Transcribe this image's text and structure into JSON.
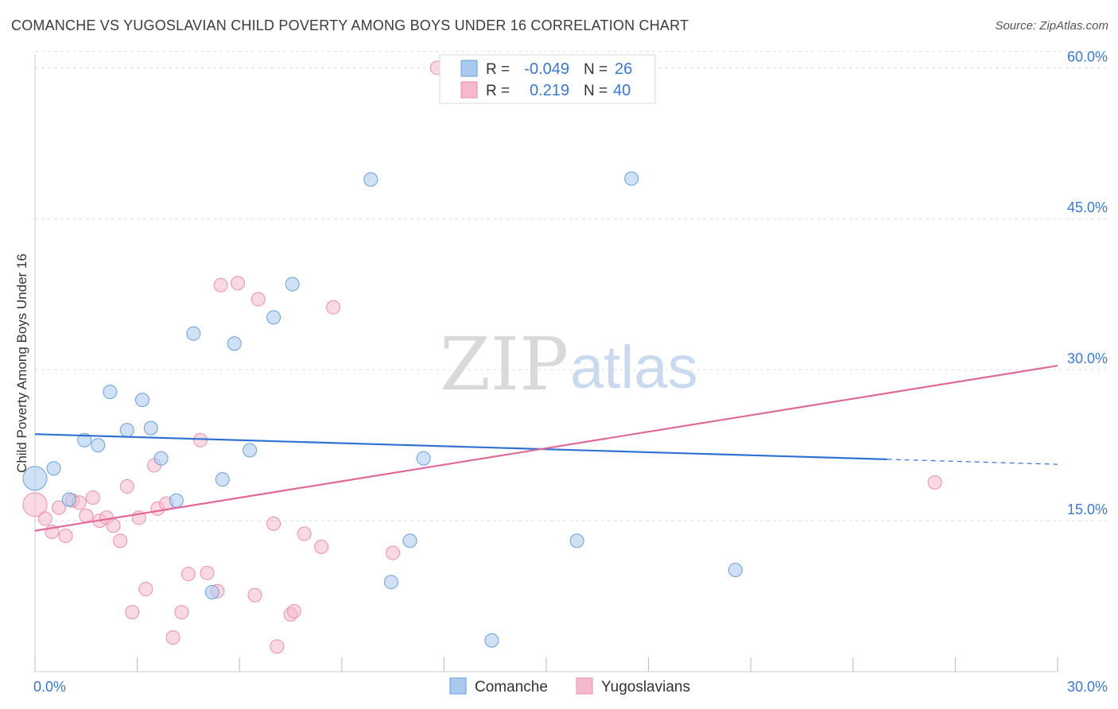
{
  "title": "COMANCHE VS YUGOSLAVIAN CHILD POVERTY AMONG BOYS UNDER 16 CORRELATION CHART",
  "source": "Source: ZipAtlas.com",
  "watermark": {
    "zip": "ZIP",
    "atlas": "atlas"
  },
  "legend": {
    "rows": [
      {
        "r_label": "R =",
        "r_value": "-0.049",
        "n_label": "N =",
        "n_value": "26"
      },
      {
        "r_label": "R =",
        "r_value": "0.219",
        "n_label": "N =",
        "n_value": "40"
      }
    ]
  },
  "colors": {
    "comanche_fill": "#a9c9ef",
    "comanche_stroke": "#6a9fdc",
    "comanche_line": "#2f72d4",
    "yugo_fill": "#f6b9cb",
    "yugo_stroke": "#ea8fac",
    "yugo_line": "#e0699a",
    "grid": "#dddddd",
    "tick_text": "#3a78d4"
  },
  "chart_data": {
    "type": "scatter",
    "title": "COMANCHE VS YUGOSLAVIAN CHILD POVERTY AMONG BOYS UNDER 16 CORRELATION CHART",
    "xlabel": "",
    "ylabel": "Child Poverty Among Boys Under 16",
    "xlim": [
      0,
      30
    ],
    "ylim": [
      0,
      62
    ],
    "x_ticks": [
      {
        "value": 0,
        "label": "0.0%"
      },
      {
        "value": 30,
        "label": "30.0%"
      }
    ],
    "y_ticks": [
      {
        "value": 15,
        "label": "15.0%"
      },
      {
        "value": 30,
        "label": "30.0%"
      },
      {
        "value": 45,
        "label": "45.0%"
      },
      {
        "value": 60,
        "label": "60.0%"
      }
    ],
    "grid": true,
    "legend_position": "bottom-center",
    "series": [
      {
        "name": "Comanche",
        "R": -0.049,
        "N": 26,
        "trend": {
          "x0": 0,
          "y0": 23.6,
          "x1": 25.0,
          "y1": 21.1,
          "dashed_to_x": 30.0,
          "dashed_to_y": 20.6
        },
        "points": [
          {
            "x": 0.0,
            "y": 19.2,
            "big": true
          },
          {
            "x": 0.55,
            "y": 20.2
          },
          {
            "x": 1.0,
            "y": 17.1
          },
          {
            "x": 1.45,
            "y": 23.0
          },
          {
            "x": 1.85,
            "y": 22.5
          },
          {
            "x": 2.2,
            "y": 27.8
          },
          {
            "x": 2.7,
            "y": 24.0
          },
          {
            "x": 3.15,
            "y": 27.0
          },
          {
            "x": 3.4,
            "y": 24.2
          },
          {
            "x": 3.7,
            "y": 21.2
          },
          {
            "x": 4.15,
            "y": 17.0
          },
          {
            "x": 4.65,
            "y": 33.6
          },
          {
            "x": 5.2,
            "y": 7.9
          },
          {
            "x": 5.5,
            "y": 19.1
          },
          {
            "x": 5.85,
            "y": 32.6
          },
          {
            "x": 6.3,
            "y": 22.0
          },
          {
            "x": 7.0,
            "y": 35.2
          },
          {
            "x": 7.55,
            "y": 38.5
          },
          {
            "x": 9.85,
            "y": 48.9
          },
          {
            "x": 10.45,
            "y": 8.9
          },
          {
            "x": 11.0,
            "y": 13.0
          },
          {
            "x": 11.4,
            "y": 21.2
          },
          {
            "x": 13.4,
            "y": 3.1
          },
          {
            "x": 15.9,
            "y": 13.0
          },
          {
            "x": 17.5,
            "y": 49.0
          },
          {
            "x": 20.55,
            "y": 10.1
          }
        ]
      },
      {
        "name": "Yugoslavians",
        "R": 0.219,
        "N": 40,
        "trend": {
          "x0": 0,
          "y0": 14.0,
          "x1": 30.0,
          "y1": 30.4
        },
        "points": [
          {
            "x": 0.0,
            "y": 16.6,
            "big": true
          },
          {
            "x": 0.3,
            "y": 15.2
          },
          {
            "x": 0.5,
            "y": 13.9
          },
          {
            "x": 0.7,
            "y": 16.3
          },
          {
            "x": 0.9,
            "y": 13.5
          },
          {
            "x": 1.1,
            "y": 17.0
          },
          {
            "x": 1.3,
            "y": 16.8
          },
          {
            "x": 1.5,
            "y": 15.5
          },
          {
            "x": 1.7,
            "y": 17.3
          },
          {
            "x": 1.9,
            "y": 15.0
          },
          {
            "x": 2.1,
            "y": 15.3
          },
          {
            "x": 2.3,
            "y": 14.5
          },
          {
            "x": 2.5,
            "y": 13.0
          },
          {
            "x": 2.7,
            "y": 18.4
          },
          {
            "x": 2.85,
            "y": 5.9
          },
          {
            "x": 3.05,
            "y": 15.3
          },
          {
            "x": 3.25,
            "y": 8.2
          },
          {
            "x": 3.5,
            "y": 20.5
          },
          {
            "x": 3.6,
            "y": 16.2
          },
          {
            "x": 3.85,
            "y": 16.7
          },
          {
            "x": 4.05,
            "y": 3.4
          },
          {
            "x": 4.3,
            "y": 5.9
          },
          {
            "x": 4.5,
            "y": 9.7
          },
          {
            "x": 4.85,
            "y": 23.0
          },
          {
            "x": 5.05,
            "y": 9.8
          },
          {
            "x": 5.35,
            "y": 8.0
          },
          {
            "x": 5.45,
            "y": 38.4
          },
          {
            "x": 5.95,
            "y": 38.6
          },
          {
            "x": 6.45,
            "y": 7.6
          },
          {
            "x": 6.55,
            "y": 37.0
          },
          {
            "x": 7.0,
            "y": 14.7
          },
          {
            "x": 7.1,
            "y": 2.5
          },
          {
            "x": 7.5,
            "y": 5.7
          },
          {
            "x": 7.6,
            "y": 6.0
          },
          {
            "x": 7.9,
            "y": 13.7
          },
          {
            "x": 8.4,
            "y": 12.4
          },
          {
            "x": 8.75,
            "y": 36.2
          },
          {
            "x": 10.5,
            "y": 11.8
          },
          {
            "x": 11.8,
            "y": 60.0
          },
          {
            "x": 26.4,
            "y": 18.8
          }
        ]
      }
    ]
  }
}
